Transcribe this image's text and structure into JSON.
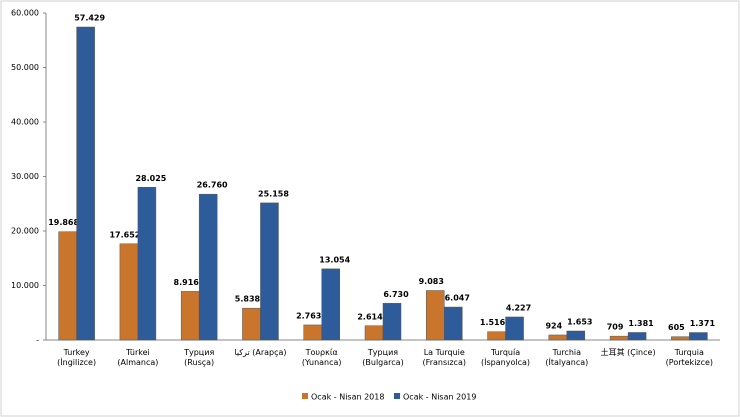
{
  "chart_data": {
    "type": "bar",
    "categories": [
      "Turkey\n(İngilizce)",
      "Türkei\n(Almanca)",
      "Турция (Rusça)",
      "تركيا (Arapça)",
      "Τουρκία\n(Yunanca)",
      "Турция\n(Bulgarca)",
      "La Turquie\n(Fransızca)",
      "Turquía\n(İspanyolca)",
      "Turchia\n(İtalyanca)",
      "土耳其 (Çince)",
      "Turquia\n(Portekizce)"
    ],
    "series": [
      {
        "name": "Ocak - Nisan 2018",
        "color": "#c9762c",
        "values": [
          19868,
          17652,
          8916,
          5838,
          2763,
          2614,
          9083,
          1516,
          924,
          709,
          605
        ],
        "value_labels": [
          "19.868",
          "17.652",
          "8.916",
          "5.838",
          "2.763",
          "2.614",
          "9.083",
          "1.516",
          "924",
          "709",
          "605"
        ]
      },
      {
        "name": "Ocak - Nisan 2019",
        "color": "#2e5c9a",
        "values": [
          57429,
          28025,
          26760,
          25158,
          13054,
          6730,
          6047,
          4227,
          1653,
          1381,
          1371
        ],
        "value_labels": [
          "57.429",
          "28.025",
          "26.760",
          "25.158",
          "13.054",
          "6.730",
          "6.047",
          "4.227",
          "1.653",
          "1.381",
          "1.371"
        ]
      }
    ],
    "ylim": [
      0,
      60000
    ],
    "yticks": [
      {
        "value": 0,
        "label": "-"
      },
      {
        "value": 10000,
        "label": "10.000"
      },
      {
        "value": 20000,
        "label": "20.000"
      },
      {
        "value": 30000,
        "label": "30.000"
      },
      {
        "value": 40000,
        "label": "40.000"
      },
      {
        "value": 50000,
        "label": "50.000"
      },
      {
        "value": 60000,
        "label": "60.000"
      }
    ],
    "legend": "bottom"
  }
}
